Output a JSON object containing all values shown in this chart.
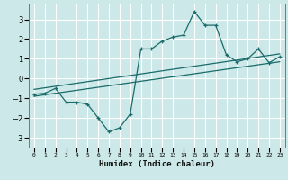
{
  "xlabel": "Humidex (Indice chaleur)",
  "ylabel": "",
  "bg_color": "#cce8e8",
  "grid_color": "#ffffff",
  "line_color": "#1a6b6b",
  "xlim": [
    -0.5,
    23.5
  ],
  "ylim": [
    -3.5,
    3.8
  ],
  "yticks": [
    -3,
    -2,
    -1,
    0,
    1,
    2,
    3
  ],
  "xticks": [
    0,
    1,
    2,
    3,
    4,
    5,
    6,
    7,
    8,
    9,
    10,
    11,
    12,
    13,
    14,
    15,
    16,
    17,
    18,
    19,
    20,
    21,
    22,
    23
  ],
  "main_x": [
    0,
    1,
    2,
    3,
    4,
    5,
    6,
    7,
    8,
    9,
    10,
    11,
    12,
    13,
    14,
    15,
    16,
    17,
    18,
    19,
    20,
    21,
    22,
    23
  ],
  "main_y": [
    -0.8,
    -0.75,
    -0.5,
    -1.2,
    -1.2,
    -1.3,
    -2.0,
    -2.7,
    -2.5,
    -1.8,
    1.5,
    1.5,
    1.9,
    2.1,
    2.2,
    3.4,
    2.7,
    2.7,
    1.2,
    0.85,
    1.0,
    1.5,
    0.8,
    1.1
  ],
  "line1_x": [
    0,
    23
  ],
  "line1_y": [
    -0.9,
    0.85
  ],
  "line2_x": [
    0,
    23
  ],
  "line2_y": [
    -0.55,
    1.25
  ]
}
